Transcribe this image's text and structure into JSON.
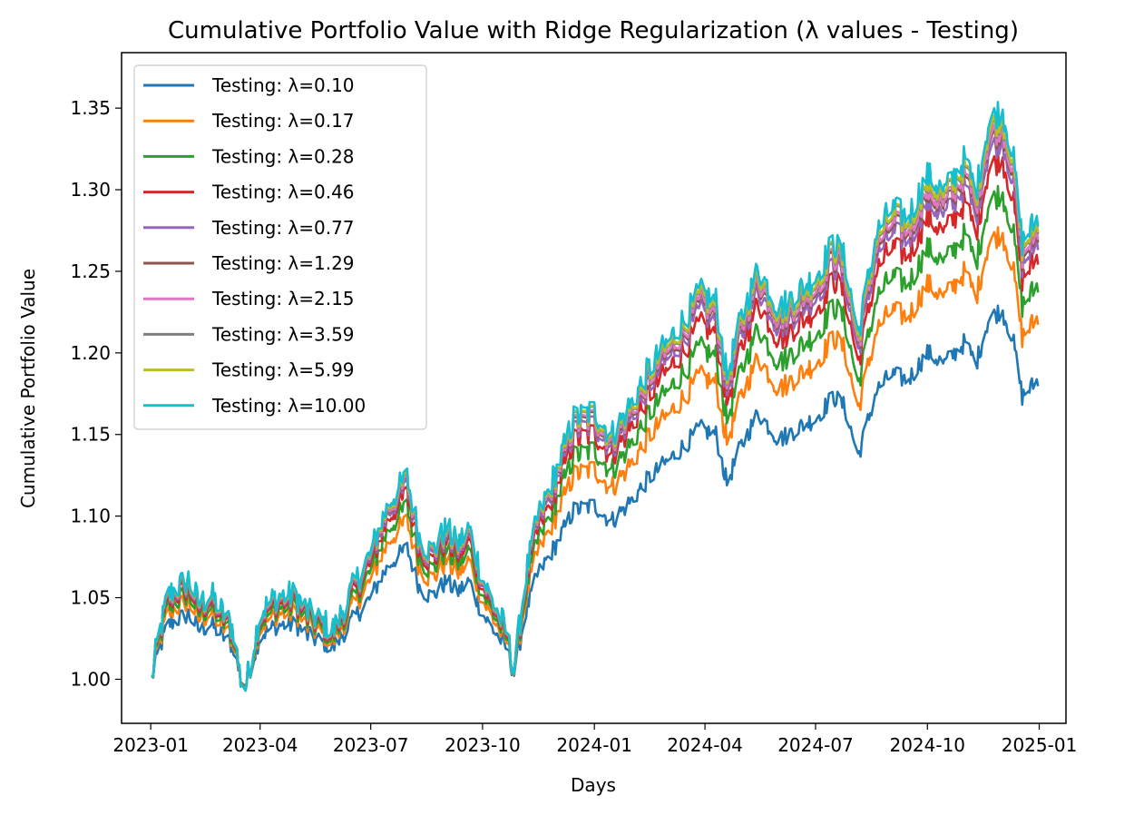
{
  "chart_data": {
    "type": "line",
    "title": "Cumulative Portfolio Value with Ridge Regularization (λ values - Testing)",
    "xlabel": "Days",
    "ylabel": "Cumulative Portfolio Value",
    "xlim": [
      "2022-12-08",
      "2025-01-23"
    ],
    "ylim": [
      0.973,
      1.384
    ],
    "x_ticks": [
      "2023-01",
      "2023-04",
      "2023-07",
      "2023-10",
      "2024-01",
      "2024-04",
      "2024-07",
      "2024-10",
      "2025-01"
    ],
    "x_tick_dates": [
      "2023-01-01",
      "2023-04-01",
      "2023-07-01",
      "2023-10-01",
      "2024-01-01",
      "2024-04-01",
      "2024-07-01",
      "2024-10-01",
      "2025-01-01"
    ],
    "y_ticks": [
      "1.00",
      "1.05",
      "1.10",
      "1.15",
      "1.20",
      "1.25",
      "1.30",
      "1.35"
    ],
    "grid": false,
    "legend_position": "top-left",
    "base_series": {
      "x": [
        "2023-01-02",
        "2023-01-06",
        "2023-01-15",
        "2023-02-01",
        "2023-02-10",
        "2023-02-20",
        "2023-03-01",
        "2023-03-10",
        "2023-03-16",
        "2023-03-20",
        "2023-04-01",
        "2023-04-15",
        "2023-05-01",
        "2023-05-10",
        "2023-05-20",
        "2023-06-01",
        "2023-06-10",
        "2023-06-20",
        "2023-07-01",
        "2023-07-10",
        "2023-07-20",
        "2023-07-31",
        "2023-08-10",
        "2023-08-20",
        "2023-09-01",
        "2023-09-10",
        "2023-09-20",
        "2023-10-01",
        "2023-10-10",
        "2023-10-20",
        "2023-10-27",
        "2023-11-05",
        "2023-11-15",
        "2023-12-01",
        "2023-12-15",
        "2024-01-01",
        "2024-01-15",
        "2024-02-01",
        "2024-02-15",
        "2024-03-01",
        "2024-03-15",
        "2024-03-28",
        "2024-04-10",
        "2024-04-19",
        "2024-05-01",
        "2024-05-15",
        "2024-06-01",
        "2024-06-15",
        "2024-07-01",
        "2024-07-16",
        "2024-07-25",
        "2024-08-05",
        "2024-08-20",
        "2024-09-01",
        "2024-09-15",
        "2024-10-01",
        "2024-10-15",
        "2024-11-01",
        "2024-11-10",
        "2024-11-20",
        "2024-12-01",
        "2024-12-10",
        "2024-12-18",
        "2024-12-31"
      ],
      "values": [
        1.0,
        1.02,
        1.05,
        1.06,
        1.045,
        1.05,
        1.04,
        1.03,
        1.0,
        0.995,
        1.04,
        1.05,
        1.05,
        1.04,
        1.035,
        1.03,
        1.045,
        1.06,
        1.075,
        1.095,
        1.11,
        1.12,
        1.085,
        1.075,
        1.09,
        1.08,
        1.09,
        1.06,
        1.045,
        1.03,
        1.005,
        1.06,
        1.095,
        1.125,
        1.155,
        1.16,
        1.145,
        1.165,
        1.185,
        1.2,
        1.215,
        1.23,
        1.225,
        1.18,
        1.215,
        1.245,
        1.22,
        1.23,
        1.24,
        1.26,
        1.25,
        1.205,
        1.265,
        1.28,
        1.275,
        1.3,
        1.29,
        1.31,
        1.29,
        1.33,
        1.34,
        1.315,
        1.26,
        1.275
      ]
    },
    "series": [
      {
        "name": "Testing: λ=0.10",
        "color": "#1f77b4",
        "scale": 0.8,
        "offset": -0.04
      },
      {
        "name": "Testing: λ=0.17",
        "color": "#ff7f0e",
        "scale": 0.89,
        "offset": -0.025
      },
      {
        "name": "Testing: λ=0.28",
        "color": "#2ca02c",
        "scale": 0.93,
        "offset": -0.015
      },
      {
        "name": "Testing: λ=0.46",
        "color": "#d62728",
        "scale": 0.97,
        "offset": -0.008
      },
      {
        "name": "Testing: λ=0.77",
        "color": "#9467bd",
        "scale": 0.99,
        "offset": -0.004
      },
      {
        "name": "Testing: λ=1.29",
        "color": "#8c564b",
        "scale": 1.0,
        "offset": -0.002
      },
      {
        "name": "Testing: λ=2.15",
        "color": "#e377c2",
        "scale": 1.0,
        "offset": 0.0
      },
      {
        "name": "Testing: λ=3.59",
        "color": "#7f7f7f",
        "scale": 1.01,
        "offset": 0.001
      },
      {
        "name": "Testing: λ=5.99",
        "color": "#bcbd22",
        "scale": 1.01,
        "offset": 0.002
      },
      {
        "name": "Testing: λ=10.00",
        "color": "#17becf",
        "scale": 1.02,
        "offset": 0.003
      }
    ]
  }
}
